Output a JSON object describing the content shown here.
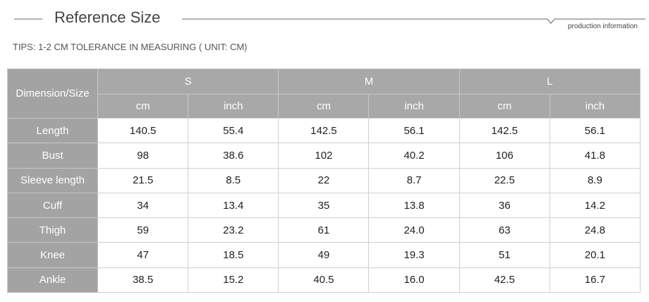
{
  "header": {
    "title": "Reference Size",
    "subtitle": "production information"
  },
  "tips": "TIPS: 1-2 CM TOLERANCE IN MEASURING ( UNIT: CM)",
  "table": {
    "corner": "Dimension/Size",
    "sizes": [
      "S",
      "M",
      "L"
    ],
    "units": [
      "cm",
      "inch",
      "cm",
      "inch",
      "cm",
      "inch"
    ],
    "rows": [
      {
        "label": "Length",
        "cells": [
          "140.5",
          "55.4",
          "142.5",
          "56.1",
          "142.5",
          "56.1"
        ]
      },
      {
        "label": "Bust",
        "cells": [
          "98",
          "38.6",
          "102",
          "40.2",
          "106",
          "41.8"
        ]
      },
      {
        "label": "Sleeve length",
        "cells": [
          "21.5",
          "8.5",
          "22",
          "8.7",
          "22.5",
          "8.9"
        ]
      },
      {
        "label": "Cuff",
        "cells": [
          "34",
          "13.4",
          "35",
          "13.8",
          "36",
          "14.2"
        ]
      },
      {
        "label": "Thigh",
        "cells": [
          "59",
          "23.2",
          "61",
          "24.0",
          "63",
          "24.8"
        ]
      },
      {
        "label": "Knee",
        "cells": [
          "47",
          "18.5",
          "49",
          "19.3",
          "51",
          "20.1"
        ]
      },
      {
        "label": "Ankle",
        "cells": [
          "38.5",
          "15.2",
          "40.5",
          "16.0",
          "42.5",
          "16.7"
        ]
      }
    ]
  }
}
